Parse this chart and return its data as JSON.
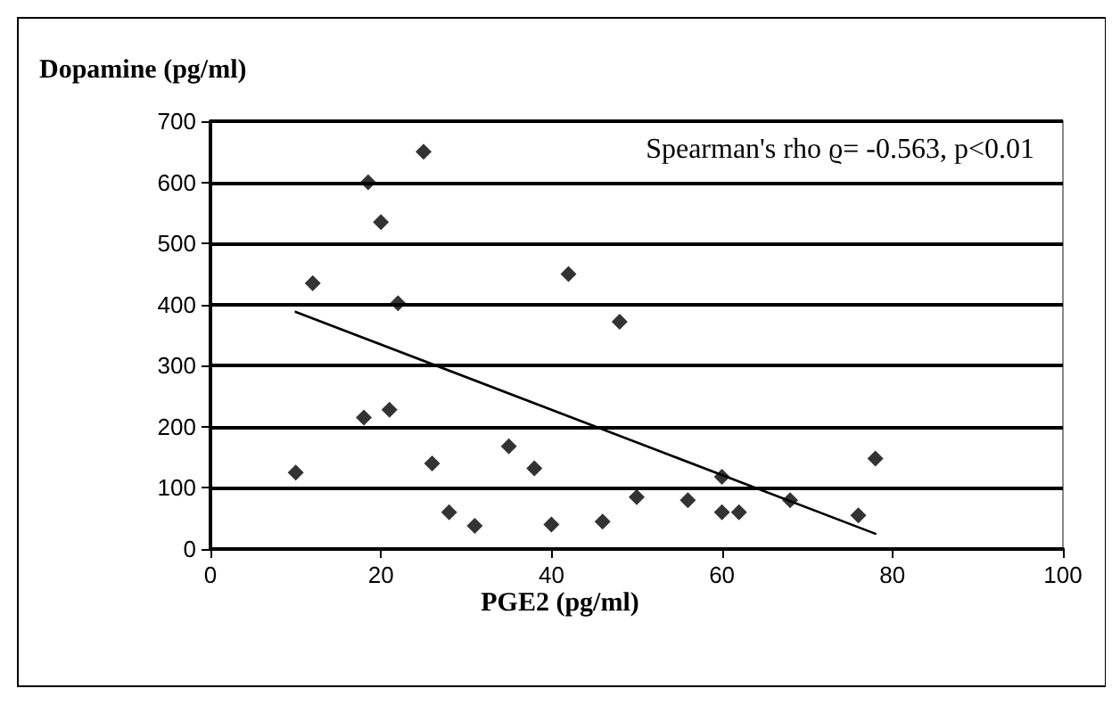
{
  "chart_data": {
    "type": "scatter",
    "ylabel": "Dopamine (pg/ml)",
    "xlabel": "PGE2 (pg/ml)",
    "annotations": [
      "Spearman's rho ϱ= -0.563, p<0.01"
    ],
    "xlim": [
      0,
      100
    ],
    "xticks": [
      0,
      20,
      40,
      60,
      80,
      100
    ],
    "ylim": [
      0,
      700
    ],
    "yticks": [
      0,
      100,
      200,
      300,
      400,
      500,
      600,
      700
    ],
    "grid": "y",
    "marker": "diamond",
    "series": [
      {
        "color": "#000000",
        "x": [
          10,
          12,
          18,
          18.5,
          20,
          21,
          22,
          25,
          26,
          28,
          31,
          35,
          38,
          40,
          42,
          46,
          48,
          50,
          56,
          60,
          60,
          62,
          68,
          76,
          78
        ],
        "values": [
          125,
          435,
          215,
          600,
          535,
          228,
          402,
          650,
          140,
          60,
          38,
          168,
          132,
          40,
          450,
          45,
          372,
          85,
          80,
          118,
          60,
          60,
          80,
          55,
          148
        ]
      },
      {
        "type": "line",
        "color": "#000000",
        "x": [
          10,
          78
        ],
        "values": [
          388,
          25
        ],
        "line_style": "solid",
        "marker": "none"
      }
    ]
  }
}
